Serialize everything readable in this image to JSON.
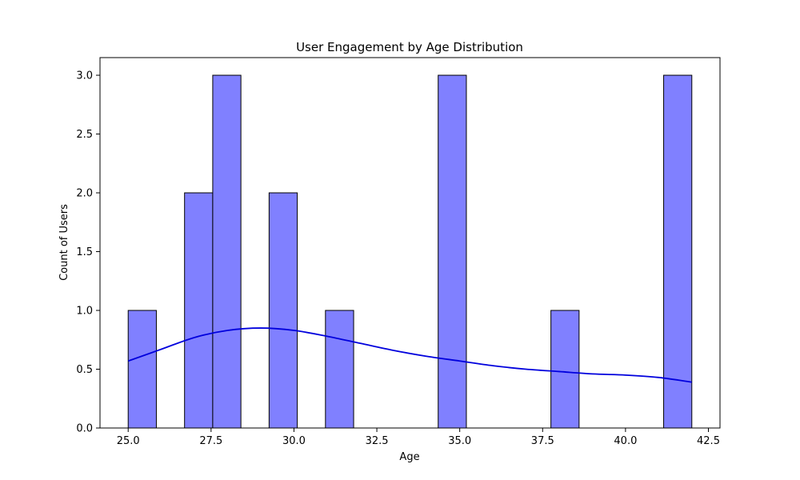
{
  "chart_data": {
    "type": "bar",
    "title": "User Engagement by Age Distribution",
    "xlabel": "Age",
    "ylabel": "Count of Users",
    "xlim": [
      24.15,
      42.85
    ],
    "ylim": [
      0,
      3.15
    ],
    "xticks": [
      25.0,
      27.5,
      30.0,
      32.5,
      35.0,
      37.5,
      40.0,
      42.5
    ],
    "xtick_labels": [
      "25.0",
      "27.5",
      "30.0",
      "32.5",
      "35.0",
      "37.5",
      "40.0",
      "42.5"
    ],
    "yticks": [
      0.0,
      0.5,
      1.0,
      1.5,
      2.0,
      2.5,
      3.0
    ],
    "ytick_labels": [
      "0.0",
      "0.5",
      "1.0",
      "1.5",
      "2.0",
      "2.5",
      "3.0"
    ],
    "grid": false,
    "bars": [
      {
        "x0": 25.0,
        "x1": 25.85,
        "count": 1
      },
      {
        "x0": 26.7,
        "x1": 27.55,
        "count": 2
      },
      {
        "x0": 27.55,
        "x1": 28.4,
        "count": 3
      },
      {
        "x0": 29.25,
        "x1": 30.1,
        "count": 2
      },
      {
        "x0": 30.95,
        "x1": 31.8,
        "count": 1
      },
      {
        "x0": 34.35,
        "x1": 35.2,
        "count": 3
      },
      {
        "x0": 37.75,
        "x1": 38.6,
        "count": 1
      },
      {
        "x0": 41.15,
        "x1": 42.0,
        "count": 3
      }
    ],
    "kde": {
      "x": [
        25.0,
        26.0,
        27.0,
        28.0,
        29.0,
        30.0,
        31.0,
        32.0,
        33.0,
        34.0,
        35.0,
        36.0,
        37.0,
        38.0,
        39.0,
        40.0,
        41.0,
        42.0
      ],
      "y": [
        0.57,
        0.67,
        0.77,
        0.83,
        0.85,
        0.83,
        0.78,
        0.72,
        0.66,
        0.61,
        0.57,
        0.53,
        0.5,
        0.48,
        0.46,
        0.45,
        0.43,
        0.39
      ]
    },
    "colors": {
      "bar_fill": "#8080ff",
      "bar_edge": "#000000",
      "kde_line": "#0000dd"
    }
  }
}
